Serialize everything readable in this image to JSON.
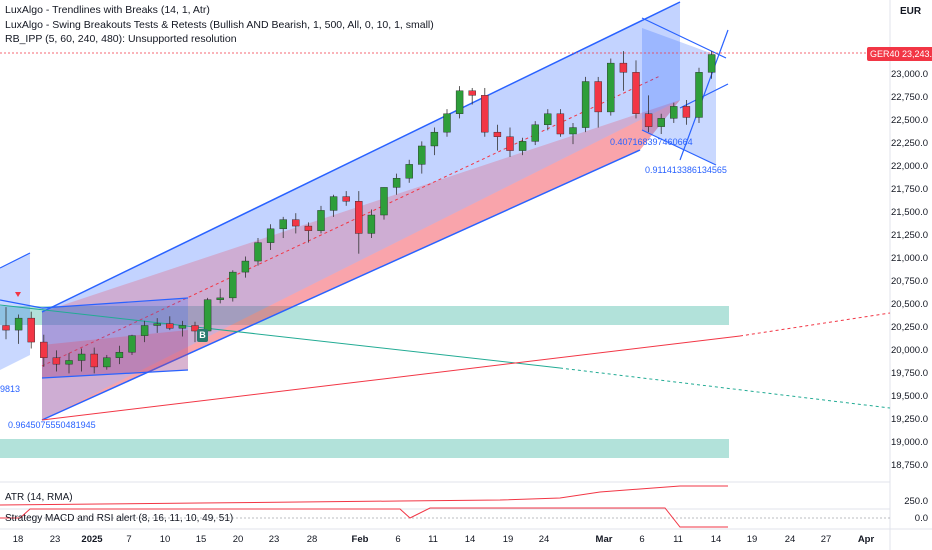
{
  "legend": {
    "line1": "LuxAlgo - Trendlines with Breaks (14, 1, Atr)",
    "line2": "LuxAlgo - Swing Breakouts Tests & Retests (Bullish AND Bearish, 1, 500, All, 0, 10, 1, small)",
    "line3": "RB_IPP (5, 60, 240, 480): Unsupported resolution"
  },
  "price_axis": {
    "currency": "EUR",
    "symbol": "GER40",
    "last_price": "23,243.0",
    "labels": [
      "23,000.0",
      "22,750.0",
      "22,500.0",
      "22,250.0",
      "22,000.0",
      "21,750.0",
      "21,500.0",
      "21,250.0",
      "21,000.0",
      "20,750.0",
      "20,500.0",
      "20,250.0",
      "20,000.0",
      "19,750.0",
      "19,500.0",
      "19,250.0",
      "19,000.0",
      "18,750.0"
    ]
  },
  "time_axis": {
    "labels": [
      "18",
      "23",
      "2025",
      "7",
      "10",
      "15",
      "20",
      "23",
      "28",
      "Feb",
      "6",
      "11",
      "14",
      "19",
      "24",
      "Mar",
      "6",
      "11",
      "14",
      "19",
      "24",
      "27",
      "Apr"
    ]
  },
  "annotations": {
    "level_a": "0.407168397460664",
    "level_b": "0.911413386134565",
    "level_c": "0.9645075550481945",
    "level_d": "9813",
    "breakout_marker": "B"
  },
  "atr_pane": {
    "title": "ATR (14, RMA)",
    "axis_label": "250.0"
  },
  "strategy_pane": {
    "title": "Strategy MACD and RSI alert (8, 16, 11, 10, 49, 51)",
    "axis_label": "0.0"
  },
  "colors": {
    "up": "#089981",
    "up_body": "#2e9e3a",
    "down": "#f23645",
    "channel_blue": "#2962ff",
    "channel_fill_blue": "rgba(41,98,255,0.28)",
    "channel_fill_red": "rgba(242,54,69,0.28)",
    "zone_teal": "rgba(34,171,148,0.35)"
  },
  "chart_data": {
    "type": "candlestick",
    "symbol": "GER40",
    "currency": "EUR",
    "ylim": [
      18600,
      23600
    ],
    "candles": [
      {
        "o": 20300,
        "h": 20500,
        "l": 20150,
        "c": 20250
      },
      {
        "o": 20250,
        "h": 20420,
        "l": 20100,
        "c": 20380
      },
      {
        "o": 20380,
        "h": 20450,
        "l": 20050,
        "c": 20120
      },
      {
        "o": 20120,
        "h": 20200,
        "l": 19850,
        "c": 19950
      },
      {
        "o": 19950,
        "h": 20030,
        "l": 19800,
        "c": 19880
      },
      {
        "o": 19880,
        "h": 20000,
        "l": 19780,
        "c": 19920
      },
      {
        "o": 19920,
        "h": 20050,
        "l": 19800,
        "c": 19990
      },
      {
        "o": 19990,
        "h": 20060,
        "l": 19780,
        "c": 19850
      },
      {
        "o": 19850,
        "h": 19980,
        "l": 19820,
        "c": 19950
      },
      {
        "o": 19950,
        "h": 20080,
        "l": 19880,
        "c": 20010
      },
      {
        "o": 20010,
        "h": 20200,
        "l": 19980,
        "c": 20190
      },
      {
        "o": 20190,
        "h": 20350,
        "l": 20120,
        "c": 20300
      },
      {
        "o": 20300,
        "h": 20380,
        "l": 20220,
        "c": 20320
      },
      {
        "o": 20320,
        "h": 20400,
        "l": 20250,
        "c": 20270
      },
      {
        "o": 20270,
        "h": 20350,
        "l": 20180,
        "c": 20300
      },
      {
        "o": 20300,
        "h": 20340,
        "l": 20120,
        "c": 20240
      },
      {
        "o": 20240,
        "h": 20600,
        "l": 20220,
        "c": 20580
      },
      {
        "o": 20580,
        "h": 20700,
        "l": 20540,
        "c": 20600
      },
      {
        "o": 20600,
        "h": 20900,
        "l": 20560,
        "c": 20880
      },
      {
        "o": 20880,
        "h": 21050,
        "l": 20820,
        "c": 21000
      },
      {
        "o": 21000,
        "h": 21250,
        "l": 20950,
        "c": 21200
      },
      {
        "o": 21200,
        "h": 21400,
        "l": 21120,
        "c": 21350
      },
      {
        "o": 21350,
        "h": 21480,
        "l": 21250,
        "c": 21450
      },
      {
        "o": 21450,
        "h": 21520,
        "l": 21300,
        "c": 21380
      },
      {
        "o": 21380,
        "h": 21420,
        "l": 21200,
        "c": 21330
      },
      {
        "o": 21330,
        "h": 21600,
        "l": 21300,
        "c": 21550
      },
      {
        "o": 21550,
        "h": 21720,
        "l": 21480,
        "c": 21700
      },
      {
        "o": 21700,
        "h": 21760,
        "l": 21600,
        "c": 21650
      },
      {
        "o": 21650,
        "h": 21760,
        "l": 21080,
        "c": 21300
      },
      {
        "o": 21300,
        "h": 21560,
        "l": 21250,
        "c": 21500
      },
      {
        "o": 21500,
        "h": 21800,
        "l": 21450,
        "c": 21800
      },
      {
        "o": 21800,
        "h": 21950,
        "l": 21720,
        "c": 21900
      },
      {
        "o": 21900,
        "h": 22100,
        "l": 21850,
        "c": 22050
      },
      {
        "o": 22050,
        "h": 22300,
        "l": 21950,
        "c": 22250
      },
      {
        "o": 22250,
        "h": 22450,
        "l": 22150,
        "c": 22400
      },
      {
        "o": 22400,
        "h": 22650,
        "l": 22350,
        "c": 22600
      },
      {
        "o": 22600,
        "h": 22900,
        "l": 22550,
        "c": 22850
      },
      {
        "o": 22850,
        "h": 22880,
        "l": 22700,
        "c": 22800
      },
      {
        "o": 22800,
        "h": 22880,
        "l": 22350,
        "c": 22400
      },
      {
        "o": 22400,
        "h": 22480,
        "l": 22200,
        "c": 22350
      },
      {
        "o": 22350,
        "h": 22450,
        "l": 22130,
        "c": 22200
      },
      {
        "o": 22200,
        "h": 22340,
        "l": 22150,
        "c": 22300
      },
      {
        "o": 22300,
        "h": 22520,
        "l": 22260,
        "c": 22480
      },
      {
        "o": 22480,
        "h": 22650,
        "l": 22420,
        "c": 22600
      },
      {
        "o": 22600,
        "h": 22650,
        "l": 22350,
        "c": 22380
      },
      {
        "o": 22380,
        "h": 22500,
        "l": 22270,
        "c": 22450
      },
      {
        "o": 22450,
        "h": 23000,
        "l": 22400,
        "c": 22950
      },
      {
        "o": 22950,
        "h": 23000,
        "l": 22450,
        "c": 22620
      },
      {
        "o": 22620,
        "h": 23200,
        "l": 22580,
        "c": 23150
      },
      {
        "o": 23150,
        "h": 23280,
        "l": 22850,
        "c": 23050
      },
      {
        "o": 23050,
        "h": 23180,
        "l": 22550,
        "c": 22600
      },
      {
        "o": 22600,
        "h": 22800,
        "l": 22400,
        "c": 22460
      },
      {
        "o": 22460,
        "h": 22600,
        "l": 22380,
        "c": 22550
      },
      {
        "o": 22550,
        "h": 22720,
        "l": 22500,
        "c": 22680
      },
      {
        "o": 22680,
        "h": 22750,
        "l": 22480,
        "c": 22560
      },
      {
        "o": 22560,
        "h": 23100,
        "l": 22500,
        "c": 23050
      },
      {
        "o": 23050,
        "h": 23280,
        "l": 22980,
        "c": 23243
      }
    ]
  }
}
